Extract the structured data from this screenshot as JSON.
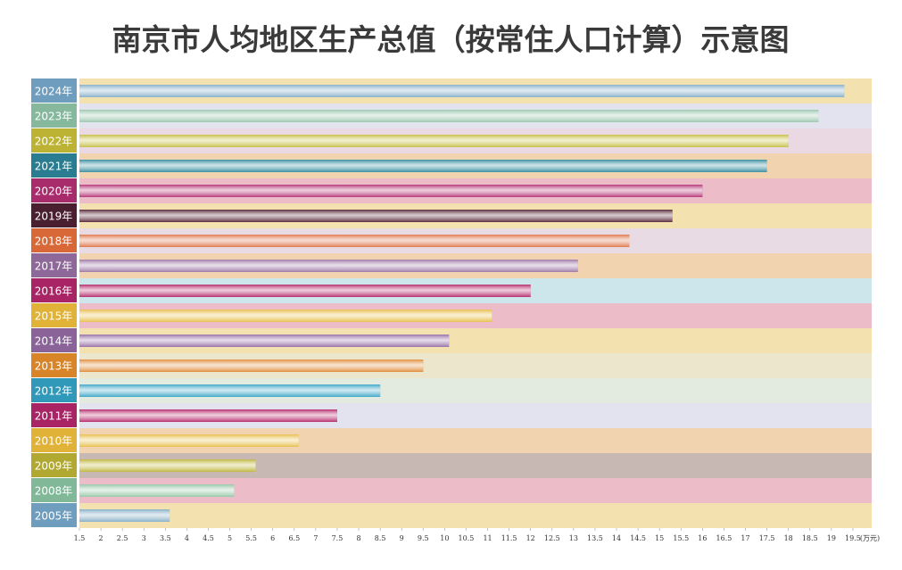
{
  "chart_data": {
    "type": "hbar",
    "title": "南京市人均地区生产总值（按常住人口计算）示意图",
    "unit": "(万元)",
    "categories": [
      "2024年",
      "2023年",
      "2022年",
      "2021年",
      "2020年",
      "2019年",
      "2018年",
      "2017年",
      "2016年",
      "2015年",
      "2014年",
      "2013年",
      "2012年",
      "2011年",
      "2010年",
      "2009年",
      "2008年",
      "2005年"
    ],
    "values": [
      19.3,
      18.7,
      18.0,
      17.5,
      16.0,
      15.3,
      14.3,
      13.1,
      12.0,
      11.1,
      10.1,
      9.5,
      8.5,
      7.5,
      6.6,
      5.6,
      5.1,
      3.6
    ],
    "colors": [
      "#88b0cc",
      "#9cc8b0",
      "#c8c04a",
      "#3a8fa0",
      "#b83a7a",
      "#5a2a3a",
      "#e07a50",
      "#a07aa8",
      "#b83070",
      "#e8c050",
      "#9a72a8",
      "#e09040",
      "#40a8c8",
      "#b83070",
      "#e8c050",
      "#c0b840",
      "#98c8a8",
      "#88b0c8"
    ],
    "label_colors": [
      "#6f9dbd",
      "#85b89c",
      "#bcb334",
      "#2a7d90",
      "#a82c6c",
      "#4a2030",
      "#d86838",
      "#8e6898",
      "#a82464",
      "#e0b238",
      "#8a6498",
      "#d88428",
      "#3098b8",
      "#a82464",
      "#e0b238",
      "#b0a830",
      "#80b898",
      "#6f9dbd"
    ],
    "row_colors": [
      "#f3e2b0",
      "#e3e3ef",
      "#ead8e2",
      "#f2d3b0",
      "#ecbcc8",
      "#f3e2b0",
      "#e8dbe4",
      "#f2d3b0",
      "#cce6ec",
      "#ecbcc8",
      "#f3e2b0",
      "#ebe6cc",
      "#e3ebe0",
      "#e3e3ef",
      "#f2d3b0",
      "#c8b8b4",
      "#ecbcc8",
      "#f3e2b0"
    ],
    "xlim": [
      1.5,
      20
    ],
    "xticks": [
      1.5,
      2,
      2.5,
      3,
      3.5,
      4,
      4.5,
      5,
      5.5,
      6,
      6.5,
      7,
      7.5,
      8,
      8.5,
      9,
      9.5,
      10,
      10.5,
      11,
      11.5,
      12,
      12.5,
      13,
      13.5,
      14,
      14.5,
      15,
      15.5,
      16,
      16.5,
      17,
      17.5,
      18,
      18.5,
      19,
      19.5
    ]
  }
}
